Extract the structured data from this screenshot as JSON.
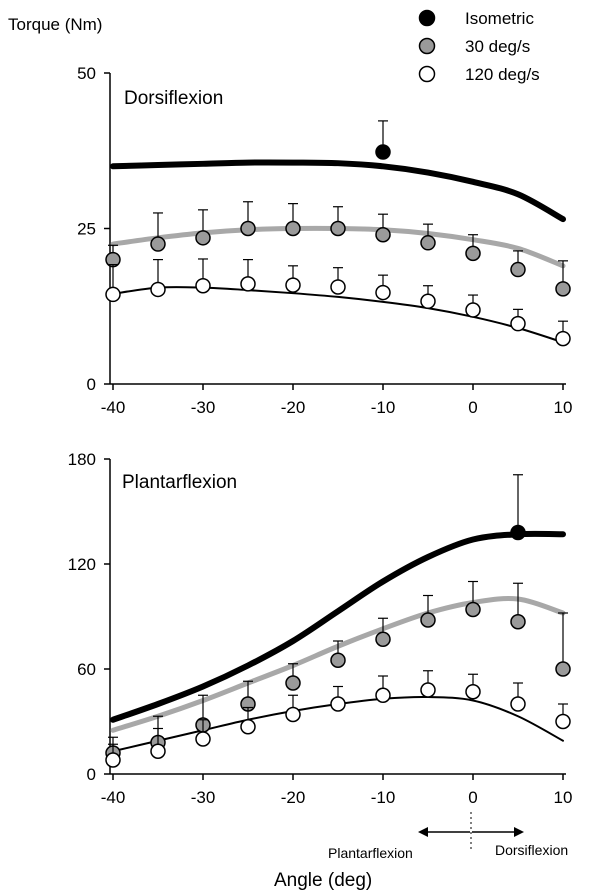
{
  "chart_data": {
    "type": "line",
    "ylabel": "Torque (Nm)",
    "xlabel": "Angle (deg)",
    "direction_labels": {
      "left": "Plantarflexion",
      "right": "Dorsiflexion"
    },
    "legend": [
      {
        "key": "isometric",
        "label": "Isometric",
        "marker": "filled-black"
      },
      {
        "key": "v30",
        "label": "30 deg/s",
        "marker": "filled-gray"
      },
      {
        "key": "v120",
        "label": "120 deg/s",
        "marker": "open"
      }
    ],
    "legend_placement": "top-right",
    "colors": {
      "isometric": "#000000",
      "v30": "#9a9a9a",
      "v120": "#ffffff",
      "curve30": "#a8a8a8"
    },
    "panels": [
      {
        "title": "Dorsiflexion",
        "x_ticks": [
          "-40",
          "-30",
          "-20",
          "-10",
          "0",
          "10"
        ],
        "y_ticks": [
          "0",
          "25",
          "50"
        ],
        "xlim": [
          -40,
          10
        ],
        "ylim": [
          0,
          50
        ],
        "grid": false,
        "curves": [
          {
            "key": "isometric",
            "x": [
              -40,
              -35,
              -30,
              -25,
              -20,
              -15,
              -10,
              -5,
              0,
              5,
              10
            ],
            "y": [
              35,
              35.2,
              35.4,
              35.6,
              35.6,
              35.5,
              35,
              34,
              32.5,
              30.5,
              26.5
            ]
          },
          {
            "key": "v30",
            "x": [
              -40,
              -35,
              -30,
              -25,
              -20,
              -15,
              -10,
              -5,
              0,
              5,
              10
            ],
            "y": [
              22.5,
              23.5,
              24.3,
              24.8,
              25,
              25,
              24.8,
              24.2,
              23.2,
              21.8,
              19
            ]
          },
          {
            "key": "v120",
            "x": [
              -40,
              -35,
              -30,
              -25,
              -20,
              -15,
              -10,
              -5,
              0,
              5,
              10
            ],
            "y": [
              14.5,
              15.5,
              15.5,
              15.1,
              14.6,
              14,
              13.2,
              12.2,
              10.8,
              9,
              6.7
            ]
          }
        ],
        "points": [
          {
            "key": "isometric",
            "x": [
              -10
            ],
            "y": [
              37.3
            ],
            "err": [
              5
            ]
          },
          {
            "key": "v30",
            "x": [
              -40,
              -35,
              -30,
              -25,
              -20,
              -15,
              -10,
              -5,
              0,
              5,
              10
            ],
            "y": [
              20,
              22.5,
              23.5,
              25,
              25,
              25,
              24,
              22.7,
              21,
              18.4,
              15.3
            ],
            "err": [
              2.3,
              5,
              4.5,
              4.3,
              4,
              3.5,
              3.3,
              3,
              3,
              3,
              4.5
            ]
          },
          {
            "key": "v120",
            "x": [
              -40,
              -35,
              -30,
              -25,
              -20,
              -15,
              -10,
              -5,
              0,
              5,
              10
            ],
            "y": [
              14.4,
              15.2,
              15.8,
              16.1,
              15.9,
              15.6,
              14.7,
              13.3,
              11.9,
              9.7,
              7.3
            ],
            "err": [
              4.8,
              4.8,
              4.3,
              3.9,
              3.1,
              3.1,
              2.8,
              2.5,
              2.4,
              2.3,
              2.8
            ]
          }
        ]
      },
      {
        "title": "Plantarflexion",
        "x_ticks": [
          "-40",
          "-30",
          "-20",
          "-10",
          "0",
          "10"
        ],
        "y_ticks": [
          "0",
          "60",
          "120",
          "180"
        ],
        "xlim": [
          -40,
          10
        ],
        "ylim": [
          0,
          180
        ],
        "grid": false,
        "curves": [
          {
            "key": "isometric",
            "x": [
              -40,
              -35,
              -30,
              -25,
              -20,
              -15,
              -10,
              -5,
              0,
              5,
              10
            ],
            "y": [
              31,
              40,
              50,
              62,
              76,
              93,
              110,
              124,
              134,
              137,
              137
            ]
          },
          {
            "key": "v30",
            "x": [
              -40,
              -35,
              -30,
              -25,
              -20,
              -15,
              -10,
              -5,
              0,
              5,
              10
            ],
            "y": [
              25,
              33,
              42,
              52,
              62,
              73,
              83,
              92,
              98,
              100,
              92
            ]
          },
          {
            "key": "v120",
            "x": [
              -40,
              -35,
              -30,
              -25,
              -20,
              -15,
              -10,
              -5,
              0,
              5,
              10
            ],
            "y": [
              13,
              19,
              25,
              31,
              36,
              40,
              43,
              44,
              42,
              33,
              19
            ]
          }
        ],
        "points": [
          {
            "key": "isometric",
            "x": [
              5
            ],
            "y": [
              138
            ],
            "err": [
              33
            ]
          },
          {
            "key": "v30",
            "x": [
              -40,
              -35,
              -30,
              -25,
              -20,
              -15,
              -10,
              -5,
              0,
              5,
              10
            ],
            "y": [
              12,
              18,
              28,
              40,
              52,
              65,
              77,
              88,
              94,
              87,
              60
            ],
            "err": [
              9,
              15,
              17,
              13,
              11,
              11,
              12,
              14,
              16,
              22,
              32
            ]
          },
          {
            "key": "v120",
            "x": [
              -40,
              -35,
              -30,
              -25,
              -20,
              -15,
              -10,
              -5,
              0,
              5,
              10
            ],
            "y": [
              8,
              13,
              20,
              27,
              34,
              40,
              45,
              48,
              47,
              40,
              30
            ],
            "err": [
              9,
              13,
              11,
              11,
              11,
              10,
              11,
              11,
              10,
              12,
              10
            ]
          }
        ]
      }
    ]
  }
}
